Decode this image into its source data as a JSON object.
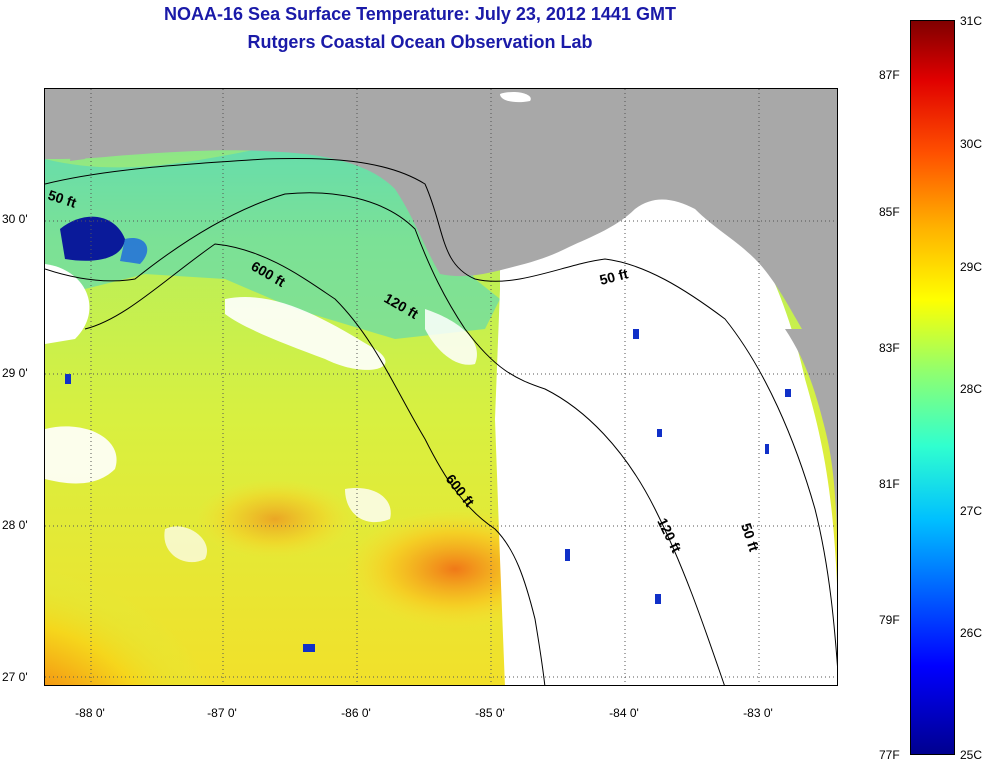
{
  "header": {
    "title_line1": "NOAA-16 Sea Surface Temperature:  July 23, 2012 1441 GMT",
    "title_line2": "Rutgers Coastal Ocean Observation Lab"
  },
  "map": {
    "latitude_labels": [
      "30 0'",
      "29 0'",
      "28 0'",
      "27 0'"
    ],
    "longitude_labels": [
      "-88 0'",
      "-87 0'",
      "-86 0'",
      "-85 0'",
      "-84 0'",
      "-83 0'"
    ],
    "contour_labels": {
      "c50_west": "50 ft",
      "c600_north": "600 ft",
      "c120_north": "120 ft",
      "c50_east": "50 ft",
      "c600_south": "600 ft",
      "c120_south": "120 ft",
      "c50_south": "50 ft"
    },
    "colors": {
      "land": "#a8a8a8",
      "cloud_mask": "#ffffff",
      "grid": "#555555"
    }
  },
  "colorbar": {
    "celsius_labels": [
      "31C",
      "30C",
      "29C",
      "28C",
      "27C",
      "26C",
      "25C"
    ],
    "fahrenheit_labels": [
      "87F",
      "85F",
      "83F",
      "81F",
      "79F",
      "77F"
    ],
    "gradient_colors": [
      "#00008f",
      "#0000ff",
      "#00c0ff",
      "#8fff70",
      "#ffff00",
      "#ff5000",
      "#800000"
    ]
  }
}
